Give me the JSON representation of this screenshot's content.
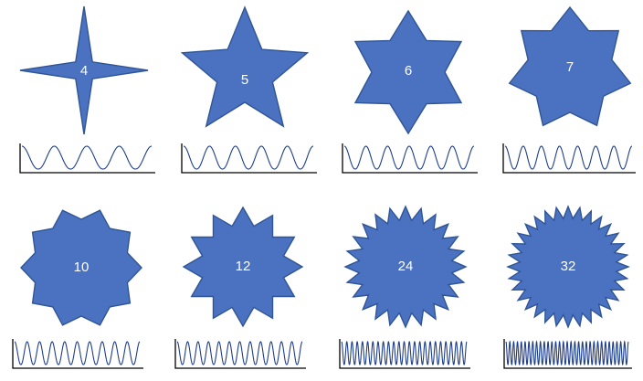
{
  "diagram": {
    "shape_color": "#4a72c0",
    "outline_color": "#2f5597",
    "signal_color": "#1f3e8a",
    "label_color": "#ffffff",
    "stars": [
      {
        "points": 4,
        "label": "4"
      },
      {
        "points": 5,
        "label": "5"
      },
      {
        "points": 6,
        "label": "6"
      },
      {
        "points": 7,
        "label": "7"
      },
      {
        "points": 10,
        "label": "10"
      },
      {
        "points": 12,
        "label": "12"
      },
      {
        "points": 24,
        "label": "24"
      },
      {
        "points": 32,
        "label": "32"
      }
    ]
  }
}
